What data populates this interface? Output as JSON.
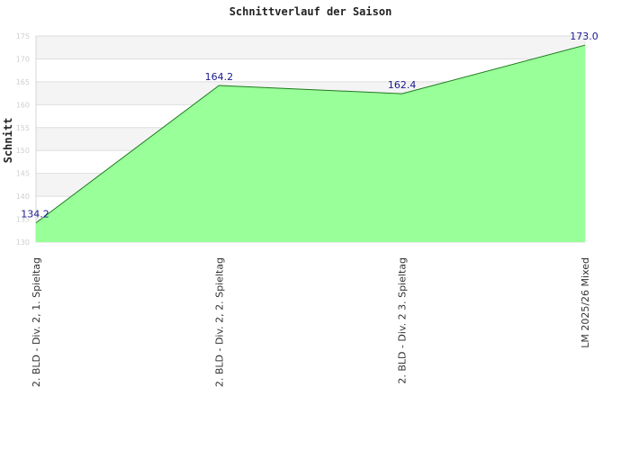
{
  "chart_data": {
    "type": "area",
    "title": "Schnittverlauf der Saison",
    "xlabel": "",
    "ylabel": "Schnitt",
    "categories": [
      "2. BLD - Div. 2, 1. Spieltag",
      "2. BLD - Div. 2, 2. Spieltag",
      "2. BLD - Div. 2  3. Spieltag",
      "LM 2025/26 Mixed"
    ],
    "values": [
      134.2,
      164.2,
      162.4,
      173.0
    ],
    "data_labels": [
      "134.2",
      "164.2",
      "162.4",
      "173.0"
    ],
    "ylim": [
      130,
      175
    ],
    "yticks": [
      "130",
      "135",
      "140",
      "145",
      "150",
      "155",
      "160",
      "165",
      "170",
      "175"
    ],
    "grid": true,
    "legend": "none",
    "colors": {
      "fill": "#99ff99",
      "line": "#1e7a1e",
      "band_light": "#f4f4f4",
      "band_white": "#ffffff",
      "data_label": "#1a1a8c"
    }
  }
}
